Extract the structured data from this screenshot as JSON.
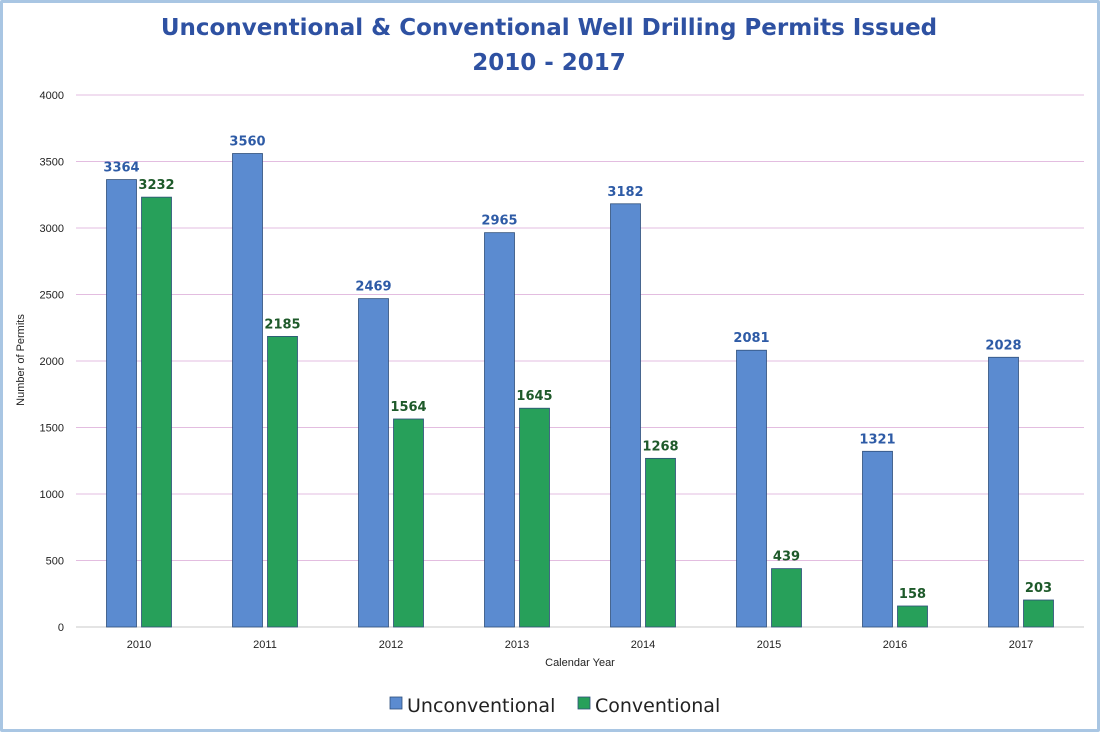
{
  "chart_data": {
    "type": "bar",
    "title": [
      "Unconventional & Conventional Well Drilling Permits Issued",
      "2010 - 2017"
    ],
    "xlabel": "Calendar Year",
    "ylabel": "Number  of Permits",
    "ylim": [
      0,
      4000
    ],
    "yticks": [
      "0",
      "500",
      "1000",
      "1500",
      "2000",
      "2500",
      "3000",
      "3500",
      "4000"
    ],
    "grid": true,
    "legend_position": "bottom",
    "categories": [
      "2010",
      "2011",
      "2012",
      "2013",
      "2014",
      "2015",
      "2016",
      "2017"
    ],
    "series": [
      {
        "name": "Unconventional",
        "values": [
          3364,
          3560,
          2469,
          2965,
          3182,
          2081,
          1321,
          2028
        ],
        "color": "#5b8bd0",
        "label_color": "#2e5ba6"
      },
      {
        "name": "Conventional",
        "values": [
          3232,
          2185,
          1564,
          1645,
          1268,
          439,
          158,
          203
        ],
        "color": "#27a05a",
        "label_color": "#1e5a2a"
      }
    ],
    "gridline_color": "#e3bde0",
    "title_color": "#2e51a2"
  }
}
